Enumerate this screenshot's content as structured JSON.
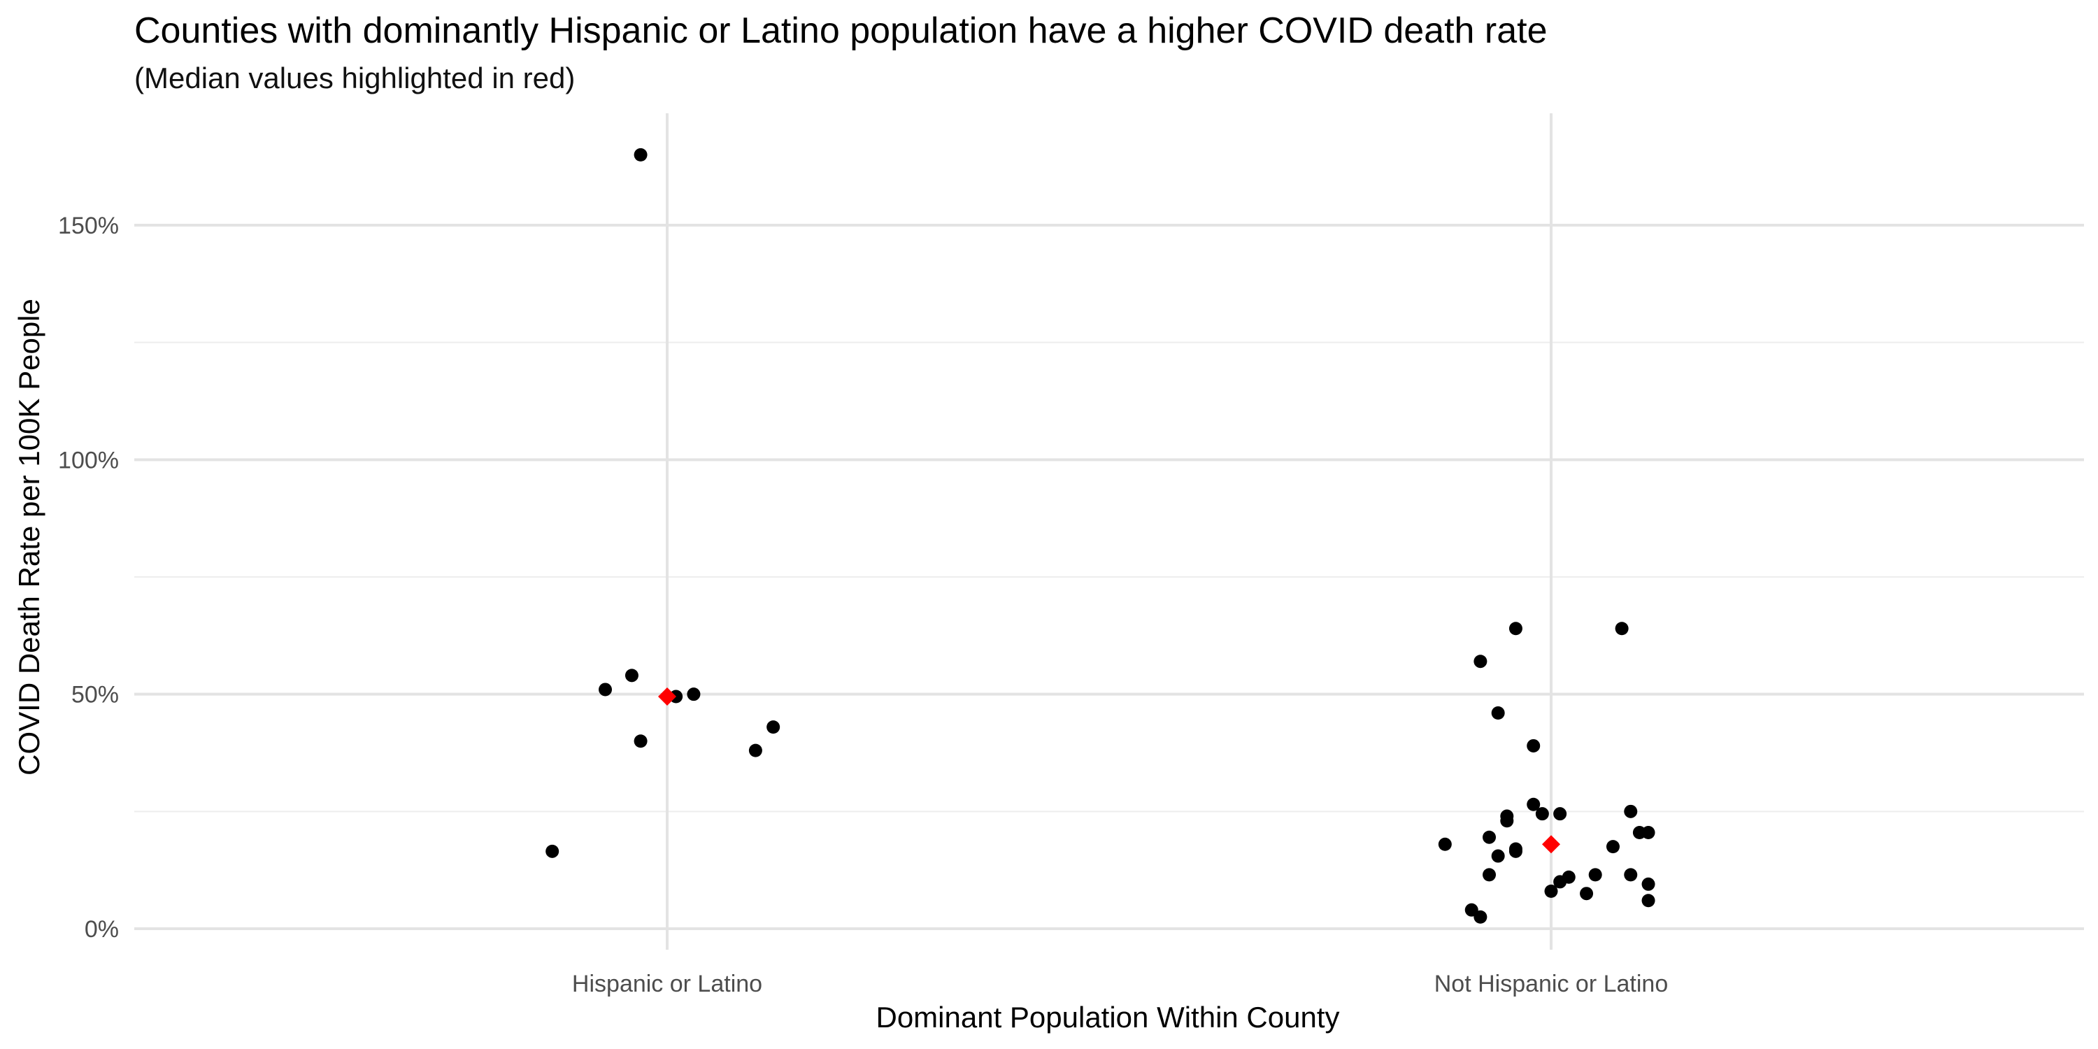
{
  "chart_data": {
    "type": "scatter",
    "title": "Counties with dominantly Hispanic or Latino population have a higher COVID death rate",
    "subtitle": "(Median values highlighted in red)",
    "xlabel": "Dominant Population Within County",
    "ylabel": "COVID Death Rate per 100K People",
    "categories": [
      "Hispanic or Latino",
      "Not Hispanic or Latino"
    ],
    "ylim": [
      -2,
      166
    ],
    "y_ticks": [
      0,
      50,
      100,
      150
    ],
    "y_tick_labels": [
      "0%",
      "50%",
      "100%",
      "150%"
    ],
    "y_minor_ticks": [
      25,
      75,
      125
    ],
    "grid": true,
    "legend": "none",
    "colors": {
      "points": "#000000",
      "median": "#ff0000"
    },
    "series": [
      {
        "category": "Hispanic or Latino",
        "points": [
          {
            "jitter": -0.03,
            "y": 165
          },
          {
            "jitter": -0.04,
            "y": 54
          },
          {
            "jitter": -0.07,
            "y": 51
          },
          {
            "jitter": 0.01,
            "y": 49.5
          },
          {
            "jitter": 0.03,
            "y": 50
          },
          {
            "jitter": 0.12,
            "y": 43
          },
          {
            "jitter": -0.03,
            "y": 40
          },
          {
            "jitter": 0.1,
            "y": 38
          },
          {
            "jitter": -0.13,
            "y": 16.5
          }
        ],
        "median": 49.5
      },
      {
        "category": "Not Hispanic or Latino",
        "points": [
          {
            "jitter": -0.04,
            "y": 64
          },
          {
            "jitter": 0.08,
            "y": 64
          },
          {
            "jitter": -0.08,
            "y": 57
          },
          {
            "jitter": -0.06,
            "y": 46
          },
          {
            "jitter": -0.02,
            "y": 39
          },
          {
            "jitter": -0.02,
            "y": 26.5
          },
          {
            "jitter": -0.05,
            "y": 24
          },
          {
            "jitter": -0.05,
            "y": 23
          },
          {
            "jitter": -0.01,
            "y": 24.5
          },
          {
            "jitter": 0.01,
            "y": 24.5
          },
          {
            "jitter": 0.09,
            "y": 25
          },
          {
            "jitter": 0.1,
            "y": 20.5
          },
          {
            "jitter": 0.11,
            "y": 20.5
          },
          {
            "jitter": -0.12,
            "y": 18
          },
          {
            "jitter": 0.07,
            "y": 17.5
          },
          {
            "jitter": -0.07,
            "y": 19.5
          },
          {
            "jitter": -0.04,
            "y": 17
          },
          {
            "jitter": -0.04,
            "y": 16.5
          },
          {
            "jitter": -0.06,
            "y": 15.5
          },
          {
            "jitter": -0.07,
            "y": 11.5
          },
          {
            "jitter": 0.05,
            "y": 11.5
          },
          {
            "jitter": 0.09,
            "y": 11.5
          },
          {
            "jitter": 0.02,
            "y": 11
          },
          {
            "jitter": 0.01,
            "y": 10
          },
          {
            "jitter": 0.11,
            "y": 9.5
          },
          {
            "jitter": 0.0,
            "y": 8
          },
          {
            "jitter": 0.04,
            "y": 7.5
          },
          {
            "jitter": 0.11,
            "y": 6
          },
          {
            "jitter": -0.09,
            "y": 4
          },
          {
            "jitter": -0.08,
            "y": 2.5
          }
        ],
        "median": 18
      }
    ]
  }
}
